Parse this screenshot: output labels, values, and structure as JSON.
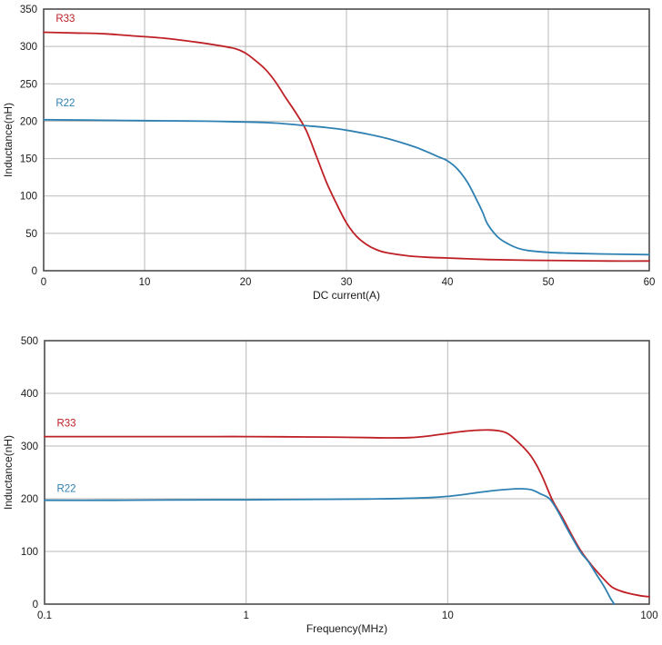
{
  "figure_title": "",
  "colors": {
    "r33_red": "#bf2026",
    "r22_blue": "#2e81b2",
    "grid": "#b9b9b9",
    "frame": "#4d4d4f",
    "text": "#1a1a1a",
    "background": "#ffffff"
  },
  "chart_data": [
    {
      "type": "line",
      "title": "",
      "xlabel": "DC current(A)",
      "ylabel": "Inductance(nH)",
      "x_scale": "linear",
      "xlim": [
        0,
        60
      ],
      "ylim": [
        0,
        350
      ],
      "x_ticks": [
        0,
        10,
        20,
        30,
        40,
        50,
        60
      ],
      "y_ticks": [
        0,
        50,
        100,
        150,
        200,
        250,
        300,
        350
      ],
      "grid": true,
      "legend_position": "inline-labels",
      "series": [
        {
          "name": "R33",
          "color": "#bf2026",
          "label_x": 1.2,
          "label_y": 333,
          "x": [
            0,
            3,
            6,
            9,
            12,
            15,
            17,
            19,
            20,
            21,
            22,
            23,
            24,
            25,
            26,
            27,
            28,
            29,
            30,
            31,
            32,
            33,
            34,
            36,
            38,
            40,
            44,
            48,
            52,
            56,
            60
          ],
          "y": [
            319,
            318,
            317,
            314,
            311,
            306,
            302,
            297,
            291,
            281,
            269,
            252,
            231,
            211,
            188,
            154,
            119,
            90,
            64,
            46,
            35,
            28,
            24,
            20,
            18,
            17,
            15,
            14,
            13.5,
            13,
            13
          ]
        },
        {
          "name": "R22",
          "color": "#2e81b2",
          "label_x": 1.2,
          "label_y": 220,
          "x": [
            0,
            4,
            8,
            12,
            16,
            20,
            23,
            26,
            28,
            30,
            32,
            34,
            36,
            37,
            38,
            39,
            40,
            41,
            42,
            43,
            43.5,
            44,
            45,
            46,
            47,
            48,
            50,
            52,
            55,
            60
          ],
          "y": [
            202,
            201.5,
            201,
            200.5,
            200,
            199,
            197.5,
            194,
            191.5,
            188,
            183,
            177,
            169,
            164.5,
            159,
            153,
            147,
            136,
            118,
            92,
            78,
            62,
            45,
            36,
            30,
            27,
            24.5,
            23.5,
            22.5,
            21.5
          ]
        }
      ]
    },
    {
      "type": "line",
      "title": "",
      "xlabel": "Frequency(MHz)",
      "ylabel": "Inductance(nH)",
      "x_scale": "log",
      "xlim": [
        0.1,
        100
      ],
      "ylim": [
        0,
        500
      ],
      "x_ticks": [
        0.1,
        1,
        10,
        100
      ],
      "y_ticks": [
        0,
        100,
        200,
        300,
        400,
        500
      ],
      "grid": true,
      "legend_position": "inline-labels",
      "series": [
        {
          "name": "R33",
          "color": "#bf2026",
          "label_x": 0.115,
          "label_y": 337,
          "x": [
            0.1,
            0.15,
            0.25,
            0.4,
            0.7,
            1,
            1.5,
            2.5,
            4,
            5,
            6.5,
            8,
            10,
            12,
            14,
            16,
            18,
            20,
            23,
            26,
            29,
            33,
            37,
            41,
            46,
            52,
            58,
            65,
            72,
            80,
            90,
            100
          ],
          "y": [
            318,
            318,
            318,
            318,
            318,
            318,
            317.5,
            317,
            316,
            315.5,
            316,
            319,
            324,
            328,
            330,
            330.5,
            329,
            323,
            303,
            280,
            248,
            198,
            165,
            133,
            100,
            73,
            52,
            33,
            25,
            20,
            16,
            14
          ]
        },
        {
          "name": "R22",
          "color": "#2e81b2",
          "label_x": 0.115,
          "label_y": 213,
          "x": [
            0.1,
            0.2,
            0.4,
            0.7,
            1,
            1.5,
            2.5,
            4,
            6,
            8,
            10,
            12,
            14,
            17,
            20,
            23,
            26,
            29,
            32,
            35,
            38,
            42,
            46,
            50,
            55,
            60,
            64,
            67
          ],
          "y": [
            197,
            197,
            197.5,
            198,
            198,
            198.5,
            199,
            199.5,
            200.5,
            202,
            204.5,
            208,
            211.5,
            215.5,
            218,
            219,
            217,
            209,
            200,
            178,
            152,
            122,
            97,
            80,
            55,
            32,
            12,
            0
          ]
        }
      ]
    }
  ]
}
